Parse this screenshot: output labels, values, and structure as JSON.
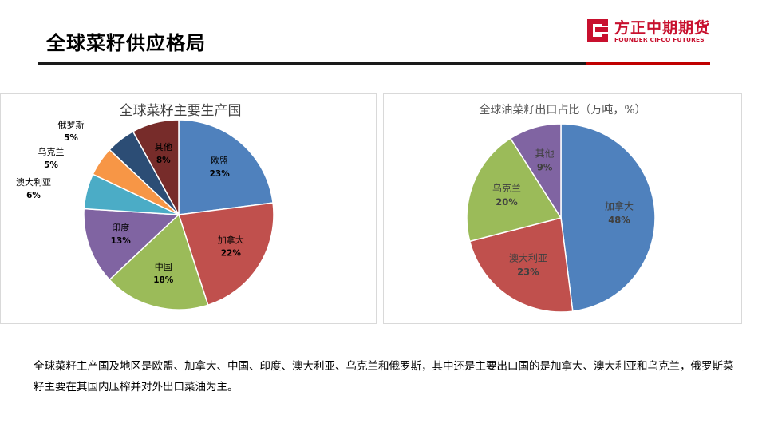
{
  "slide": {
    "title": "全球菜籽供应格局",
    "summary": "全球菜籽主产国及地区是欧盟、加拿大、中国、印度、澳大利亚、乌克兰和俄罗斯，其中还是主要出口国的是加拿大、澳大利亚和乌克兰，俄罗斯菜籽主要在其国内压榨并对外出口菜油为主。"
  },
  "logo": {
    "name_cn": "方正中期期货",
    "name_en": "FOUNDER CIFCO FUTURES",
    "icon": "founder-logo-icon"
  },
  "colors": {
    "brand_red": "#c00000",
    "title_rule": "#1a1a1a"
  },
  "chart_data": [
    {
      "type": "pie",
      "title": "全球菜籽主要生产国",
      "slices": [
        {
          "label": "欧盟",
          "value": 23,
          "display": "23%",
          "color": "#4f81bd"
        },
        {
          "label": "加拿大",
          "value": 22,
          "display": "22%",
          "color": "#c0504d"
        },
        {
          "label": "中国",
          "value": 18,
          "display": "18%",
          "color": "#9bbb59"
        },
        {
          "label": "印度",
          "value": 13,
          "display": "13%",
          "color": "#8064a2"
        },
        {
          "label": "澳大利亚",
          "value": 6,
          "display": "6%",
          "color": "#4bacc6"
        },
        {
          "label": "乌克兰",
          "value": 5,
          "display": "5%",
          "color": "#f79646"
        },
        {
          "label": "俄罗斯",
          "value": 5,
          "display": "5%",
          "color": "#2c4d75"
        },
        {
          "label": "其他",
          "value": 8,
          "display": "8%",
          "color": "#772c2a"
        }
      ],
      "label_position": "inside; small slices labeled outside left"
    },
    {
      "type": "pie",
      "title": "全球油菜籽出口占比（万吨，%）",
      "slices": [
        {
          "label": "加拿大",
          "value": 48,
          "display": "48%",
          "color": "#4f81bd"
        },
        {
          "label": "澳大利亚",
          "value": 23,
          "display": "23%",
          "color": "#c0504d"
        },
        {
          "label": "乌克兰",
          "value": 20,
          "display": "20%",
          "color": "#9bbb59"
        },
        {
          "label": "其他",
          "value": 9,
          "display": "9%",
          "color": "#8064a2"
        }
      ],
      "label_position": "inside"
    }
  ]
}
